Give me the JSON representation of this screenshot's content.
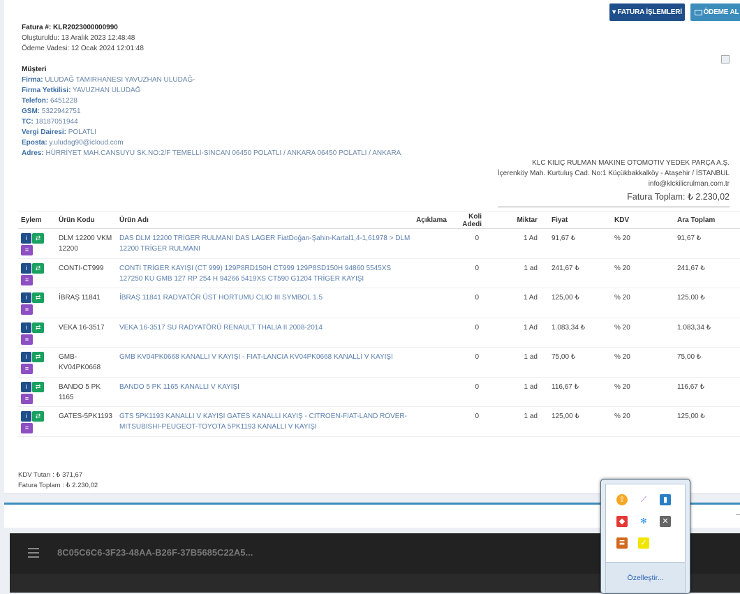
{
  "header": {
    "actions_label": "FATURA İŞLEMLERİ",
    "payment_label": "ÖDEME AL"
  },
  "invoice": {
    "number_label": "Fatura #:",
    "number": "KLR2023000000990",
    "created": "Oluşturuldu: 13 Aralık 2023 12:48:48",
    "due": "Ödeme Vadesi: 12 Ocak 2024 12:01:48"
  },
  "customer": {
    "title": "Müşteri",
    "fields": [
      {
        "label": "Firma:",
        "value": "ULUDAĞ TAMIRHANESI YAVUZHAN ULUDAĞ-"
      },
      {
        "label": "Firma Yetkilisi:",
        "value": "YAVUZHAN ULUDAĞ"
      },
      {
        "label": "Telefon:",
        "value": "6451228"
      },
      {
        "label": "GSM:",
        "value": "5322942751"
      },
      {
        "label": "TC:",
        "value": "18187051944"
      },
      {
        "label": "Vergi Dairesi:",
        "value": "POLATLI"
      },
      {
        "label": "Eposta:",
        "value": "y.uludag90@icloud.com"
      },
      {
        "label": "Adres:",
        "value": "HÜRRİYET MAH.CANSUYU SK.NO:2/F TEMELLİ-SİNCAN 06450 POLATLI / ANKARA 06450 POLATLI / ANKARA"
      }
    ]
  },
  "company": {
    "name": "KLC KILIÇ RULMAN MAKINE OTOMOTIV YEDEK PARÇA A.Ş.",
    "address": "İçerenköy Mah. Kurtuluş Cad. No:1 Küçükbakkalköy - Ataşehir / İSTANBUL",
    "email": "info@klckilicrulman.com.tr",
    "total": "Fatura Toplam:  ₺ 2.230,02"
  },
  "table": {
    "headers": [
      "Eylem",
      "Ürün Kodu",
      "Ürün Adı",
      "Açıklama",
      "Koli Adedi",
      "Miktar",
      "Fiyat",
      "KDV",
      "Ara Toplam"
    ],
    "rows": [
      {
        "code": "DLM 12200 VKM 12200",
        "name": "DAS DLM 12200 TRİGER RULMANI DAS LAGER FiatDoğan-Şahin-Kartal1,4-1,61978 > DLM 12200 TRİGER RULMANI",
        "desc": "",
        "koli": "0",
        "qty": "1 Ad",
        "price": "91,67 ₺",
        "kdv": "% 20",
        "sub": "91,67 ₺"
      },
      {
        "code": "CONTI-CT999",
        "name": "CONTI TRİGER KAYIŞI (CT 999) 129P8RD150H CT999 129P8SD150H 94860 5545XS 127250 KU GMB 127 RP 254 H 94266 5419XS CT590 G1204 TRİGER KAYIŞI",
        "desc": "",
        "koli": "0",
        "qty": "1 ad",
        "price": "241,67 ₺",
        "kdv": "% 20",
        "sub": "241,67 ₺"
      },
      {
        "code": "İBRAŞ 11841",
        "name": "İBRAŞ 11841 RADYATÖR ÜST HORTUMU CLIO III SYMBOL 1.5",
        "desc": "",
        "koli": "0",
        "qty": "1 Ad",
        "price": "125,00 ₺",
        "kdv": "% 20",
        "sub": "125,00 ₺"
      },
      {
        "code": "VEKA 16-3517",
        "name": "VEKA 16-3517 SU RADYATÖRÜ RENAULT THALIA II 2008-2014",
        "desc": "",
        "koli": "0",
        "qty": "1 Ad",
        "price": "1.083,34 ₺",
        "kdv": "% 20",
        "sub": "1.083,34 ₺"
      },
      {
        "code": "GMB-KV04PK0668",
        "name": "GMB KV04PK0668 KANALLI V KAYIŞI - FIAT-LANCIA KV04PK0668 KANALLI V KAYIŞI",
        "desc": "",
        "koli": "0",
        "qty": "1 ad",
        "price": "75,00 ₺",
        "kdv": "% 20",
        "sub": "75,00 ₺"
      },
      {
        "code": "BANDO 5 PK 1165",
        "name": "BANDO 5 PK 1165 KANALLI V KAYIŞI",
        "desc": "",
        "koli": "0",
        "qty": "1 ad",
        "price": "116,67 ₺",
        "kdv": "% 20",
        "sub": "116,67 ₺"
      },
      {
        "code": "GATES-5PK1193",
        "name": "GTS 5PK1193 KANALLI V KAYIŞI GATES KANALLI KAYIŞ - CITROEN-FIAT-LAND ROVER-MITSUBISHI-PEUGEOT-TOYOTA 5PK1193 KANALLI V KAYIŞI",
        "desc": "",
        "koli": "0",
        "qty": "1 ad",
        "price": "125,00 ₺",
        "kdv": "% 20",
        "sub": "125,00 ₺"
      }
    ]
  },
  "totals": {
    "kdv": "KDV Tutarı : ₺  371,67",
    "total": "Fatura Toplam : ₺  2.230,02"
  },
  "remote": {
    "title": "8C05C6C6-3F23-48AA-B26F-37B5685C22A5..."
  },
  "tray": {
    "customize_label": "Özelleştir...",
    "icons": [
      "update-icon",
      "feather-icon",
      "network-icon",
      "anydesk-icon",
      "snowflake-icon",
      "disconnected-icon",
      "notes-icon",
      "sticky-note-icon"
    ]
  },
  "colors": {
    "primary": "#1f4f8a",
    "info": "#3c8dbc",
    "success": "#1aa160",
    "purple": "#8d4fc2"
  }
}
